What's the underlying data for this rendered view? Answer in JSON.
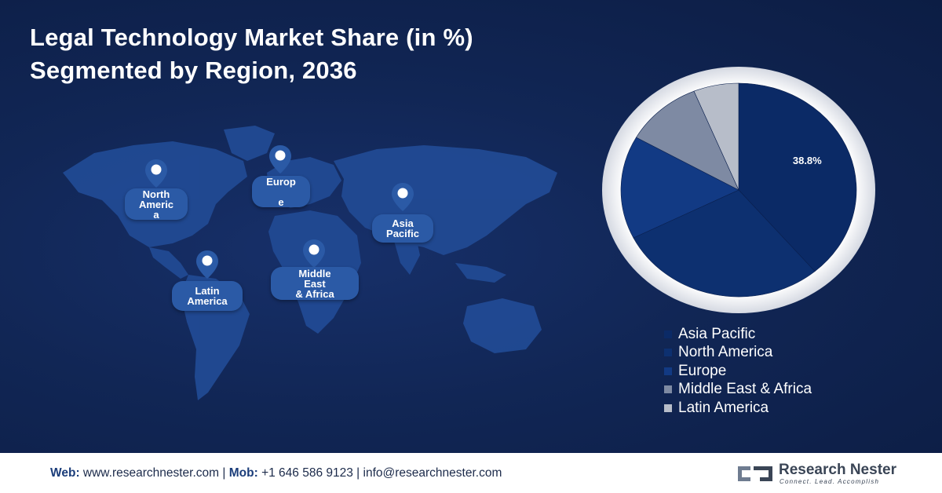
{
  "title_lines": [
    "Legal Technology Market Share (in %)",
    "Segmented by Region, 2036"
  ],
  "map_labels": [
    {
      "lines": [
        "North",
        "Americ",
        "a"
      ]
    },
    {
      "lines": [
        "Europ",
        "e"
      ]
    },
    {
      "lines": [
        "Asia",
        "Pacific"
      ]
    },
    {
      "lines": [
        "Latin",
        "America"
      ]
    },
    {
      "lines": [
        "Middle",
        "East",
        "& Africa"
      ]
    }
  ],
  "chart_data": {
    "type": "pie",
    "title": "Legal Technology Market Share (in %) Segmented by Region, 2036",
    "series": [
      {
        "name": "Asia Pacific",
        "value": 38.8,
        "color": "#0b2a66"
      },
      {
        "name": "North America",
        "value": 28.8,
        "color": "#0d3070"
      },
      {
        "name": "Europe",
        "value": 15.6,
        "color": "#123a84"
      },
      {
        "name": "Middle East & Africa",
        "value": 10.6,
        "color": "#7e8aa3"
      },
      {
        "name": "Latin America",
        "value": 6.2,
        "color": "#b7bdc9"
      }
    ],
    "data_labels": [
      {
        "series": "Asia Pacific",
        "text": "38.8%"
      }
    ],
    "legend_position": "bottom-right"
  },
  "footer": {
    "web_label": "Web:",
    "web_value": "www.researchnester.com",
    "sep1": "|",
    "mob_label": "Mob:",
    "mob_value": "+1 646 586 9123",
    "sep2": "|",
    "email": "info@researchnester.com"
  },
  "logo": {
    "name": "Research Nester",
    "tagline": "Connect. Lead. Accomplish"
  }
}
